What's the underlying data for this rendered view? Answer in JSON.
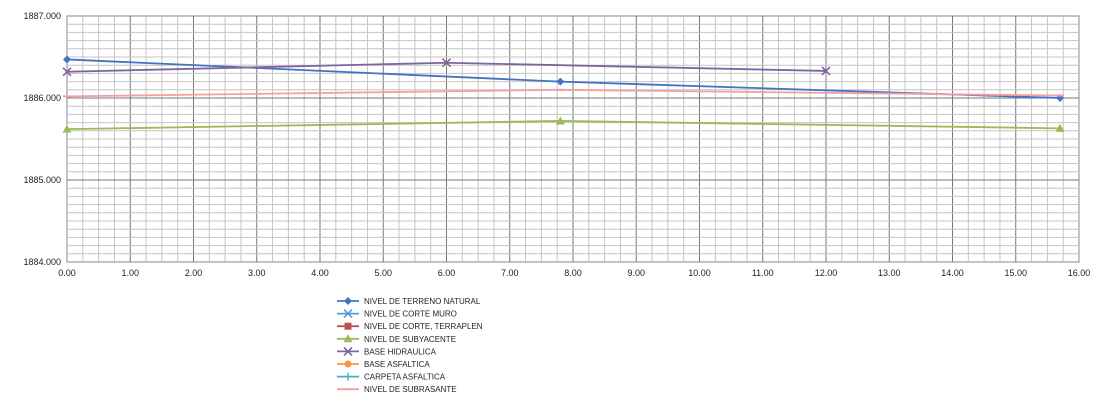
{
  "chart_data": {
    "type": "line",
    "title": "",
    "xlabel": "",
    "ylabel": "",
    "xlim": [
      0,
      16
    ],
    "ylim": [
      1884,
      1887
    ],
    "x_ticks": [
      "0.00",
      "1.00",
      "2.00",
      "3.00",
      "4.00",
      "5.00",
      "6.00",
      "7.00",
      "8.00",
      "9.00",
      "10.00",
      "11.00",
      "12.00",
      "13.00",
      "14.00",
      "15.00",
      "16.00"
    ],
    "y_ticks": [
      "1884.000",
      "1885.000",
      "1886.000",
      "1887.000"
    ],
    "grid": true,
    "legend_position": "bottom",
    "series": [
      {
        "name": "NIVEL DE TERRENO NATURAL",
        "color": "#4472C4",
        "marker": "diamond",
        "x": [
          0,
          7.8,
          15.7
        ],
        "y": [
          1886.47,
          1886.2,
          1886.0
        ]
      },
      {
        "name": "NIVEL DE CORTE MURO",
        "color": "#5B9BD5",
        "marker": "x",
        "x": [],
        "y": []
      },
      {
        "name": "NIVEL DE CORTE, TERRAPLEN",
        "color": "#C0504D",
        "marker": "square",
        "x": [],
        "y": []
      },
      {
        "name": "NIVEL DE SUBYACENTE",
        "color": "#9BBB59",
        "marker": "triangle",
        "x": [
          0,
          7.8,
          15.7
        ],
        "y": [
          1885.62,
          1885.72,
          1885.63
        ]
      },
      {
        "name": "BASE HIDRAULICA",
        "color": "#8064A2",
        "marker": "x",
        "x": [
          0,
          6.0,
          12.0
        ],
        "y": [
          1886.32,
          1886.43,
          1886.33
        ]
      },
      {
        "name": "BASE ASFALTICA",
        "color": "#F79646",
        "marker": "circle",
        "x": [],
        "y": []
      },
      {
        "name": "CARPETA ASFALTICA",
        "color": "#4BACC6",
        "marker": "plus",
        "x": [],
        "y": []
      },
      {
        "name": "NIVEL DE SUBRASANTE",
        "color": "#F2A0A0",
        "marker": "dash",
        "x": [
          0,
          7.8,
          15.7
        ],
        "y": [
          1886.02,
          1886.1,
          1886.03
        ]
      }
    ]
  }
}
